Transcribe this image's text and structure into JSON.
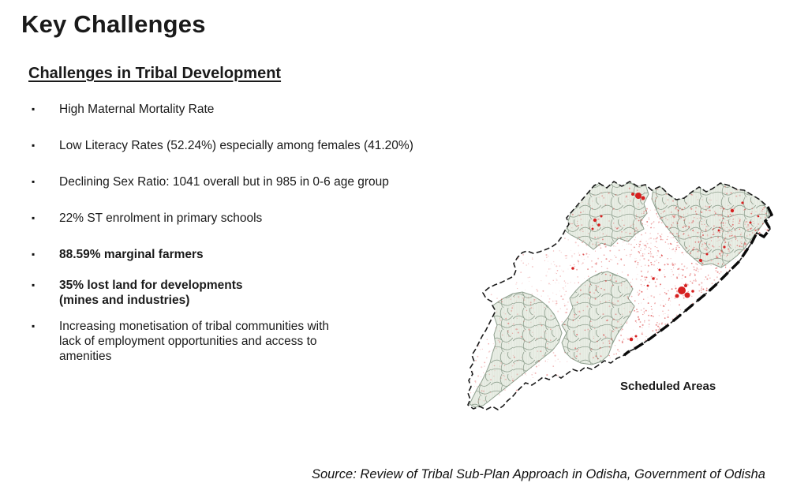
{
  "page": {
    "title": "Key Challenges"
  },
  "section": {
    "heading": "Challenges in Tribal Development"
  },
  "list": {
    "bullet_char": "▪",
    "items": [
      {
        "text": "High Maternal Mortality Rate",
        "emphasis": false
      },
      {
        "text": "Low Literacy Rates (52.24%) especially among females (41.20%)",
        "emphasis": false
      },
      {
        "text": "Declining Sex Ratio: 1041 overall but in 985 in 0-6 age group",
        "emphasis": false
      },
      {
        "text": "22% ST enrolment in primary schools",
        "emphasis": false
      },
      {
        "text": "88.59% marginal farmers",
        "emphasis": true
      },
      {
        "text": "35% lost land for developments\n(mines and industries)",
        "emphasis": true
      },
      {
        "text": "Increasing monetisation of tribal communities with\nlack of employment opportunities and access to\namenities",
        "emphasis": false
      }
    ]
  },
  "map": {
    "label": "Scheduled Areas",
    "colors": {
      "scheduled_fill": "#eaeee6",
      "district_line": "#8fa08f",
      "hatch": "#d8dfd3",
      "state_outline": "#1b1b1b",
      "coast": "#0a0a0a",
      "settlement_red": "#d62020",
      "label_color": "#1a1a1a"
    }
  },
  "footer": {
    "source": "Source: Review of Tribal Sub-Plan Approach in Odisha, Government of Odisha"
  }
}
